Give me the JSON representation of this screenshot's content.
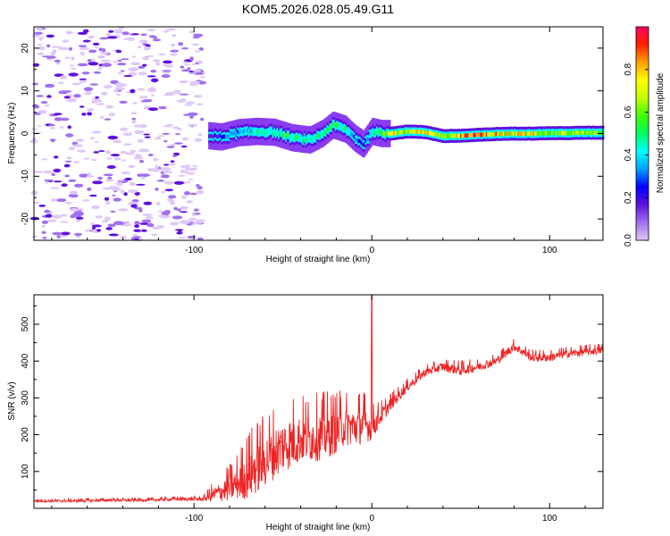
{
  "title": "KOM5.2026.028.05.49.G11",
  "chart_data": [
    {
      "type": "heatmap",
      "xlabel": "Height of straight line (km)",
      "ylabel": "Frequency (Hz)",
      "xlim": [
        -190,
        130
      ],
      "ylim": [
        -25,
        25
      ],
      "xticks": [
        -100,
        0,
        100
      ],
      "yticks": [
        -20,
        -10,
        0,
        10,
        20
      ],
      "colorbar": {
        "label": "Normalized spectral amplitude",
        "ticks": [
          0.0,
          0.2,
          0.4,
          0.6,
          0.8
        ],
        "range": [
          0,
          1
        ],
        "colormap": [
          "#e0c8f8",
          "#a070f0",
          "#6010e0",
          "#0000ff",
          "#00a0ff",
          "#00ffff",
          "#00ff60",
          "#40ff00",
          "#c0ff00",
          "#ffff00",
          "#ffa000",
          "#ff2000",
          "#ff0060"
        ]
      },
      "ridge": {
        "x": [
          -92,
          -85,
          -75,
          -65,
          -55,
          -45,
          -35,
          -28,
          -22,
          -15,
          -10,
          -5,
          0,
          5,
          10,
          20,
          30,
          40,
          50,
          60,
          70,
          80,
          90,
          100,
          110,
          120,
          130
        ],
        "freq": [
          -0.5,
          -0.8,
          0.2,
          0.5,
          0.3,
          -1.0,
          -1.5,
          0.0,
          2.0,
          1.0,
          -1.0,
          -2.5,
          0.5,
          0.0,
          0.0,
          0.5,
          0.3,
          -0.6,
          -0.5,
          -0.3,
          -0.1,
          0.0,
          0.0,
          0.1,
          0.1,
          0.2,
          0.2
        ],
        "amplitude": [
          0.15,
          0.25,
          0.35,
          0.45,
          0.45,
          0.5,
          0.45,
          0.4,
          0.55,
          0.45,
          0.3,
          0.2,
          0.5,
          0.6,
          0.75,
          0.65,
          0.7,
          0.65,
          0.8,
          0.85,
          0.75,
          0.7,
          0.75,
          0.6,
          0.65,
          0.6,
          0.55
        ]
      },
      "noise_region": [
        -190,
        -95
      ]
    },
    {
      "type": "line",
      "xlabel": "Height of straight line (km)",
      "ylabel": "SNR (v/v)",
      "xlim": [
        -190,
        130
      ],
      "ylim": [
        0,
        580
      ],
      "xticks": [
        -100,
        0,
        100
      ],
      "yticks": [
        100,
        200,
        300,
        400,
        500
      ],
      "series": [
        {
          "name": "SNR",
          "color": "#ee2222",
          "x": [
            -190,
            -170,
            -150,
            -130,
            -110,
            -95,
            -90,
            -85,
            -80,
            -75,
            -70,
            -65,
            -60,
            -55,
            -50,
            -45,
            -40,
            -35,
            -30,
            -25,
            -20,
            -15,
            -10,
            -5,
            0,
            5,
            10,
            20,
            30,
            40,
            50,
            60,
            70,
            80,
            90,
            100,
            110,
            120,
            130
          ],
          "y": [
            20,
            20,
            22,
            22,
            25,
            25,
            35,
            45,
            55,
            70,
            90,
            110,
            130,
            150,
            170,
            180,
            190,
            190,
            195,
            200,
            210,
            225,
            220,
            230,
            220,
            250,
            280,
            330,
            370,
            385,
            375,
            385,
            400,
            440,
            410,
            410,
            420,
            425,
            430
          ],
          "spread": [
            5,
            6,
            6,
            6,
            7,
            8,
            30,
            45,
            60,
            80,
            110,
            120,
            120,
            120,
            120,
            120,
            110,
            110,
            110,
            110,
            100,
            90,
            90,
            90,
            60,
            40,
            30,
            20,
            20,
            20,
            25,
            20,
            20,
            20,
            20,
            20,
            18,
            18,
            18
          ],
          "spike": {
            "x": 0,
            "y": 585
          }
        }
      ]
    }
  ]
}
